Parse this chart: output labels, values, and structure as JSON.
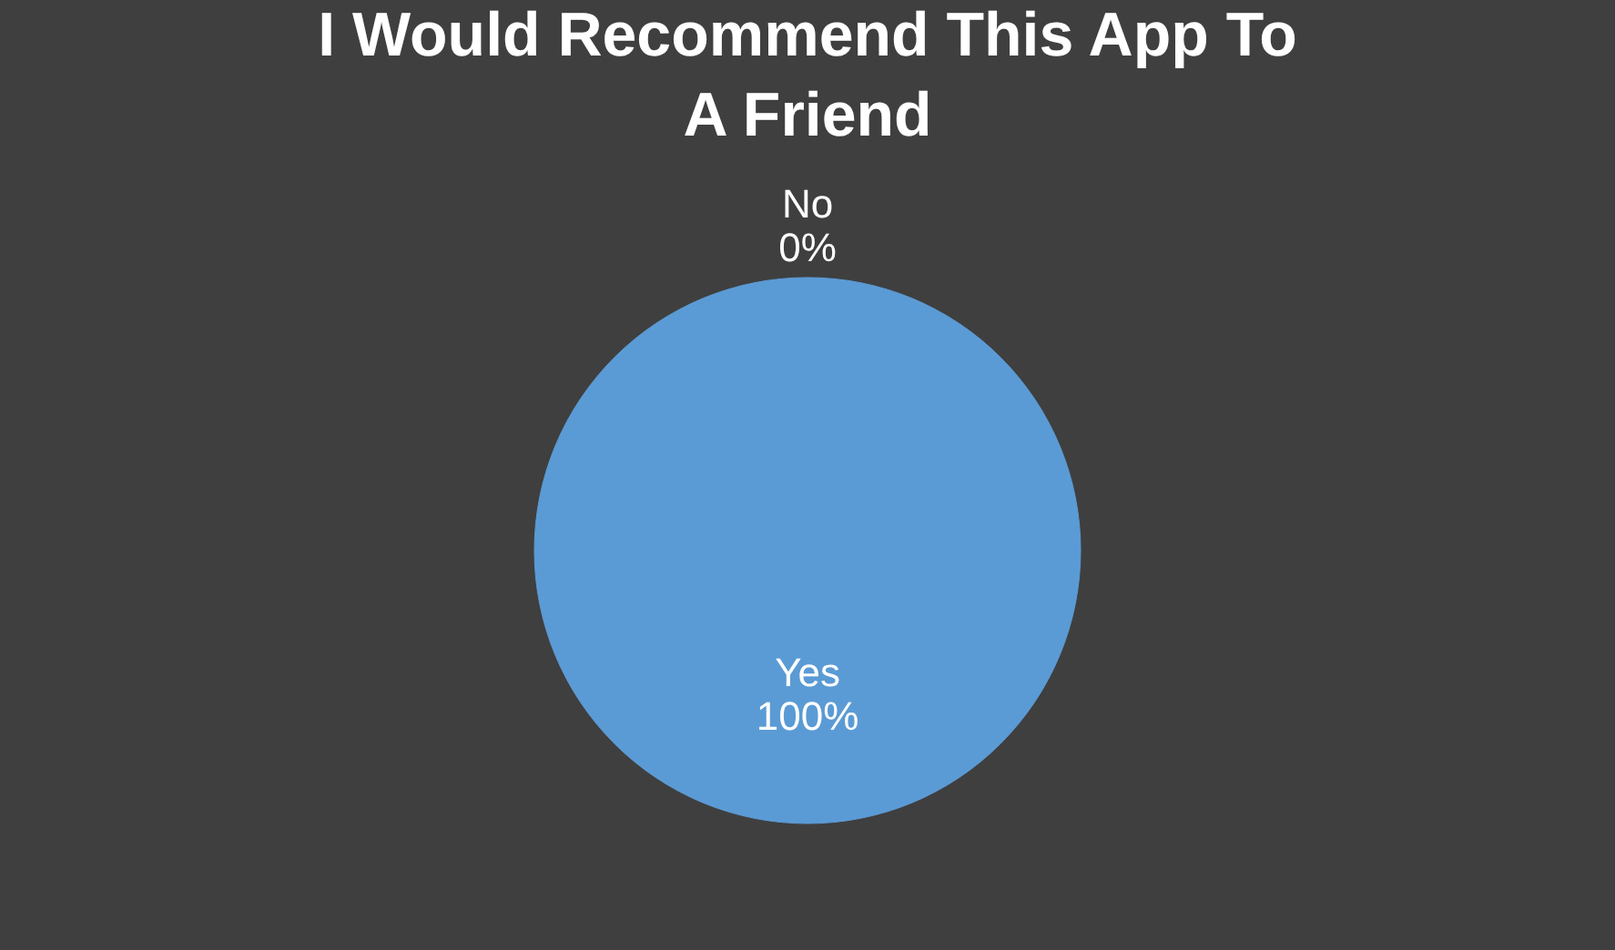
{
  "chart_data": {
    "type": "pie",
    "title": "I Would Recommend This App To A Friend",
    "categories": [
      "Yes",
      "No"
    ],
    "values": [
      100,
      0
    ],
    "value_labels": [
      "100%",
      "0%"
    ],
    "colors": [
      "#5b9bd5",
      "#ed7d31"
    ],
    "legend": false
  }
}
